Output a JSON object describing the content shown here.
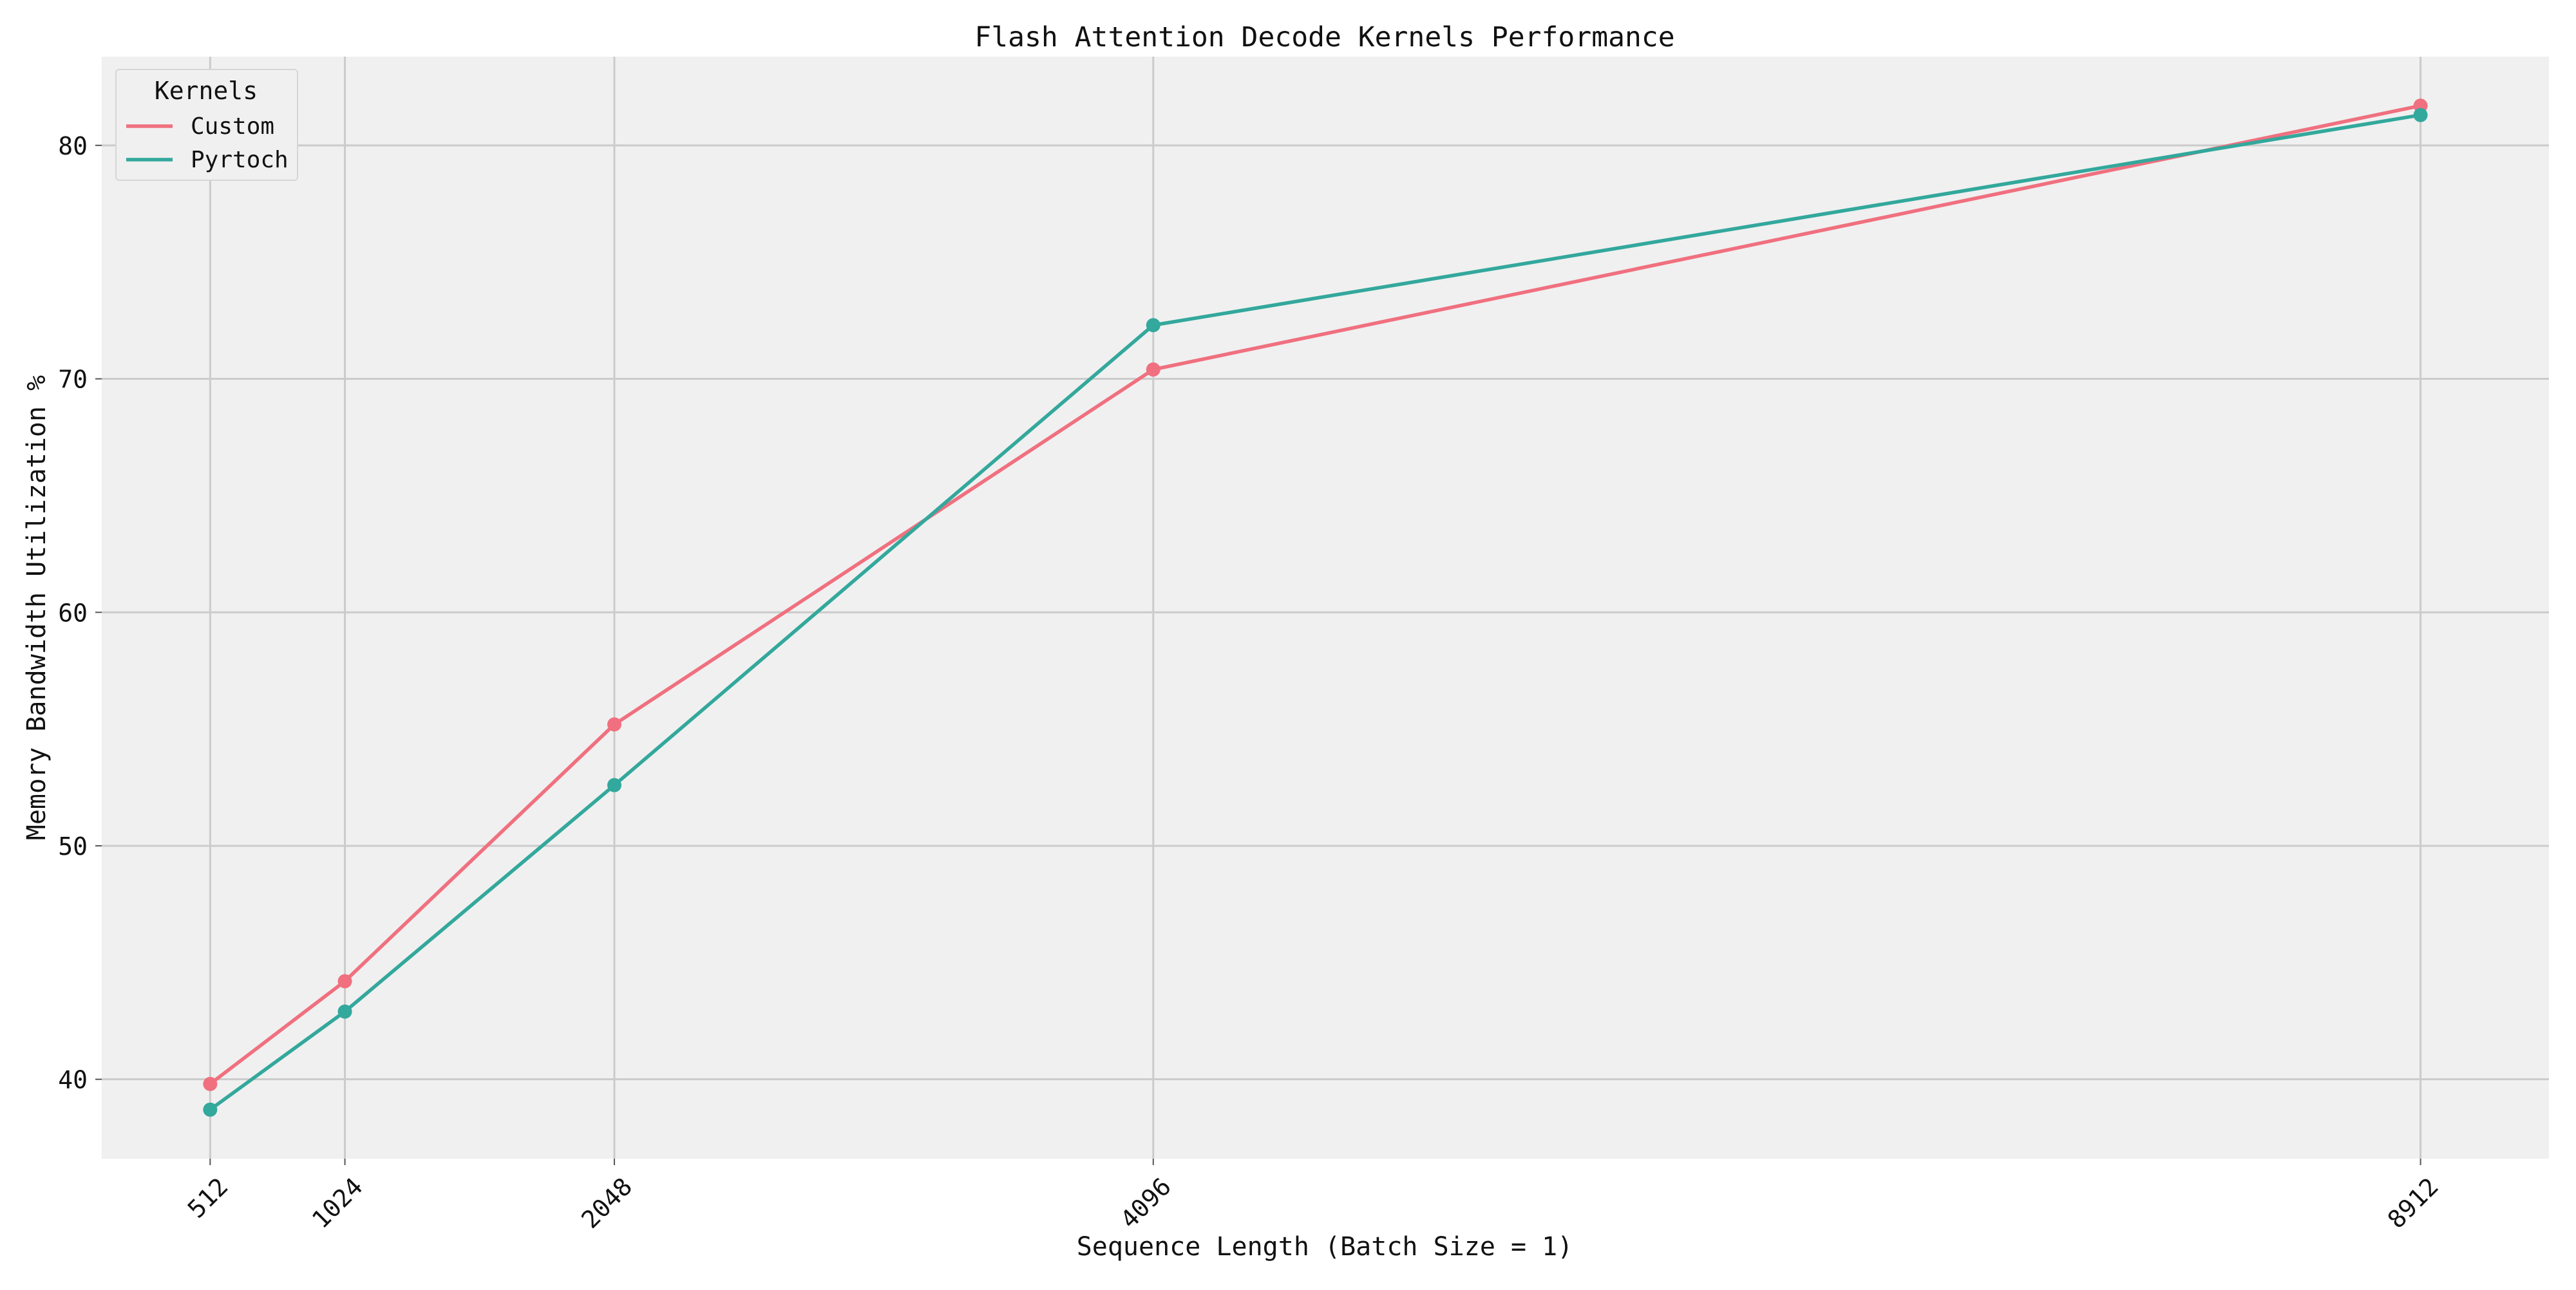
{
  "chart_data": {
    "type": "line",
    "title": "Flash Attention Decode Kernels Performance",
    "xlabel": "Sequence Length (Batch Size = 1)",
    "ylabel": "Memory Bandwidth Utilization %",
    "x": [
      512,
      1024,
      2048,
      4096,
      8912
    ],
    "x_tick_labels": [
      "512",
      "1024",
      "2048",
      "4096",
      "8912"
    ],
    "y_ticks": [
      40,
      50,
      60,
      70,
      80
    ],
    "y_tick_labels": [
      "40",
      "50",
      "60",
      "70",
      "80"
    ],
    "xlim": [
      100,
      9400
    ],
    "ylim": [
      36.6,
      83.8
    ],
    "grid": true,
    "legend": {
      "title": "Kernels",
      "placement": "top-left"
    },
    "series": [
      {
        "name": "Custom",
        "color": "#f0707f",
        "values": [
          39.8,
          44.2,
          55.2,
          70.4,
          81.7
        ]
      },
      {
        "name": "Pyrtoch",
        "color": "#33a89c",
        "values": [
          38.7,
          42.9,
          52.6,
          72.3,
          81.3
        ]
      }
    ],
    "colors": {
      "plot_background": "#f0f0f0",
      "grid": "#cbcbcb"
    }
  }
}
